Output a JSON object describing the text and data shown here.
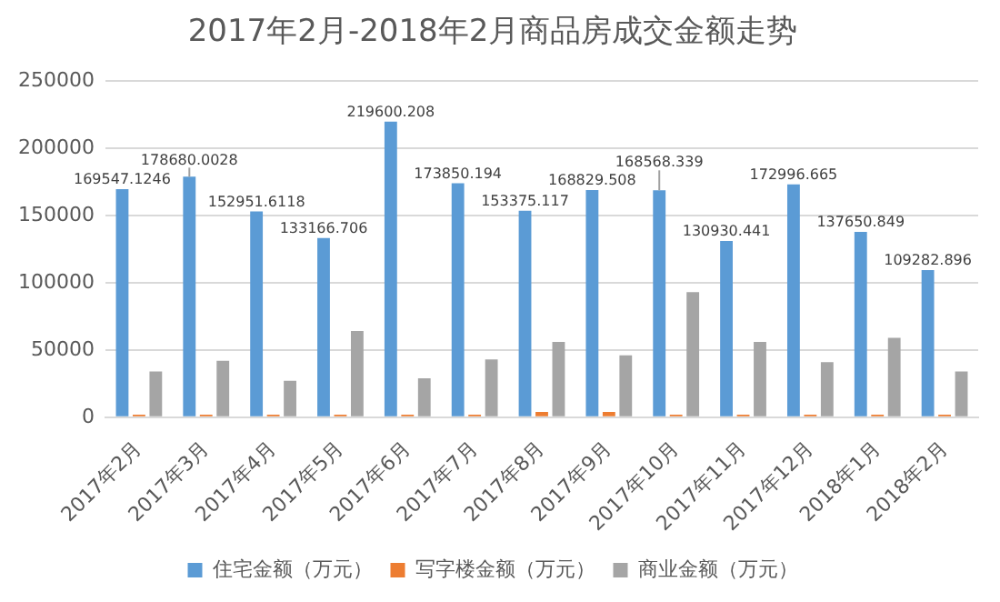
{
  "chart_data": {
    "type": "bar",
    "title": "2017年2月-2018年2月商品房成交金额走势",
    "categories": [
      "2017年2月",
      "2017年3月",
      "2017年4月",
      "2017年5月",
      "2017年6月",
      "2017年7月",
      "2017年8月",
      "2017年9月",
      "2017年10月",
      "2017年11月",
      "2017年12月",
      "2018年1月",
      "2018年2月"
    ],
    "series": [
      {
        "name": "住宅金额（万元）",
        "color": "#5b9bd5",
        "values": [
          169547.1246,
          178680.0028,
          152951.6118,
          133166.706,
          219600.208,
          173850.194,
          153375.117,
          168829.508,
          168568.339,
          130930.441,
          172996.665,
          137650.849,
          109282.896
        ],
        "value_labels": [
          "169547.1246",
          "178680.0028",
          "152951.6118",
          "133166.706",
          "219600.208",
          "173850.194",
          "153375.117",
          "168829.508",
          "168568.339",
          "130930.441",
          "172996.665",
          "137650.849",
          "109282.896"
        ]
      },
      {
        "name": "写字楼金额（万元）",
        "color": "#ed7d31",
        "values": [
          2000,
          2000,
          2000,
          2000,
          2000,
          2000,
          4000,
          4000,
          2000,
          2000,
          2000,
          2000,
          2000
        ]
      },
      {
        "name": "商业金额（万元）",
        "color": "#a5a5a5",
        "values": [
          34000,
          42000,
          27000,
          64000,
          29000,
          43000,
          56000,
          46000,
          93000,
          56000,
          41000,
          59000,
          34000
        ]
      }
    ],
    "ylim": [
      0,
      250000
    ],
    "yticks": [
      0,
      50000,
      100000,
      150000,
      200000,
      250000
    ],
    "grid": "y",
    "legend": "bottom"
  }
}
